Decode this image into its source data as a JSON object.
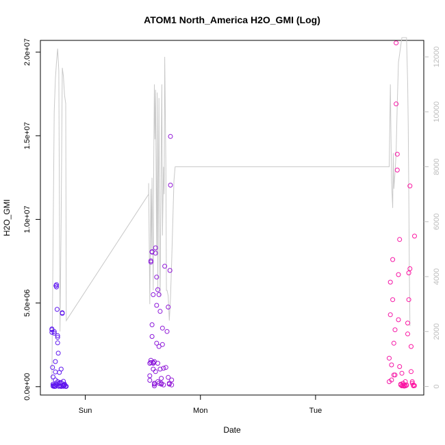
{
  "chart_data": {
    "type": "scatter",
    "title": "ATOM1 North_America H2O_GMI (Log)",
    "xlabel": "Date",
    "ylabel": "H2O_GMI",
    "x_ticks": [
      {
        "label": "Sun",
        "value": 1.0
      },
      {
        "label": "Mon",
        "value": 2.0
      },
      {
        "label": "Tue",
        "value": 3.0
      }
    ],
    "xlim": [
      0.61,
      3.94
    ],
    "y_left": {
      "lim": [
        -500000,
        20700000
      ],
      "ticks": [
        {
          "value": 0,
          "label": "0.0e+00"
        },
        {
          "value": 5000000,
          "label": "5.0e+06"
        },
        {
          "value": 10000000,
          "label": "1.0e+07"
        },
        {
          "value": 15000000,
          "label": "1.5e+07"
        },
        {
          "value": 20000000,
          "label": "2.0e+07"
        }
      ]
    },
    "y_right": {
      "lim": [
        -310,
        12600
      ],
      "ticks": [
        {
          "value": 0,
          "label": "0"
        },
        {
          "value": 2000,
          "label": "2000"
        },
        {
          "value": 4000,
          "label": "4000"
        },
        {
          "value": 6000,
          "label": "6000"
        },
        {
          "value": 8000,
          "label": "8000"
        },
        {
          "value": 10000,
          "label": "10000"
        },
        {
          "value": 12000,
          "label": "12000"
        }
      ]
    },
    "grid": false,
    "legend": "none",
    "colors": {
      "altitude_line": "#c8c8c8",
      "points_start": "#5b16f0",
      "points_end": "#ff14a0"
    },
    "altitude_series": {
      "axis": "right",
      "points": [
        [
          0.71,
          200
        ],
        [
          0.72,
          5200
        ],
        [
          0.73,
          10000
        ],
        [
          0.74,
          11200
        ],
        [
          0.75,
          11800
        ],
        [
          0.76,
          12300
        ],
        [
          0.77,
          11500
        ],
        [
          0.78,
          2000
        ],
        [
          0.79,
          6000
        ],
        [
          0.8,
          11600
        ],
        [
          0.81,
          11300
        ],
        [
          0.82,
          10600
        ],
        [
          0.83,
          10300
        ],
        [
          0.835,
          2400
        ],
        [
          1.55,
          7000
        ],
        [
          1.55,
          7400
        ],
        [
          1.56,
          3000
        ],
        [
          1.57,
          7200
        ],
        [
          1.575,
          5000
        ],
        [
          1.58,
          7600
        ],
        [
          1.59,
          3500
        ],
        [
          1.595,
          8200
        ],
        [
          1.6,
          11000
        ],
        [
          1.605,
          9000
        ],
        [
          1.61,
          10800
        ],
        [
          1.62,
          4800
        ],
        [
          1.625,
          10700
        ],
        [
          1.63,
          3500
        ],
        [
          1.635,
          7500
        ],
        [
          1.64,
          10500
        ],
        [
          1.645,
          5000
        ],
        [
          1.65,
          3300
        ],
        [
          1.66,
          9000
        ],
        [
          1.665,
          11000
        ],
        [
          1.67,
          5500
        ],
        [
          1.68,
          8000
        ],
        [
          1.685,
          7000
        ],
        [
          1.69,
          12000
        ],
        [
          1.7,
          8000
        ],
        [
          1.705,
          3500
        ],
        [
          1.71,
          3500
        ],
        [
          1.72,
          3300
        ],
        [
          1.73,
          2400
        ],
        [
          1.74,
          3200
        ],
        [
          1.75,
          4500
        ],
        [
          1.76,
          6000
        ],
        [
          1.77,
          7500
        ],
        [
          1.78,
          8000
        ],
        [
          3.64,
          8000
        ],
        [
          3.65,
          11000
        ],
        [
          3.66,
          7500
        ],
        [
          3.67,
          6500
        ],
        [
          3.675,
          8500
        ],
        [
          3.68,
          7200
        ],
        [
          3.69,
          7800
        ],
        [
          3.7,
          8500
        ],
        [
          3.71,
          10300
        ],
        [
          3.72,
          11800
        ],
        [
          3.73,
          12100
        ],
        [
          3.75,
          12700
        ],
        [
          3.76,
          12700
        ],
        [
          3.77,
          12700
        ],
        [
          3.78,
          12700
        ],
        [
          3.79,
          12700
        ],
        [
          3.8,
          11000
        ],
        [
          3.805,
          9500
        ],
        [
          3.81,
          7000
        ],
        [
          3.815,
          4000
        ],
        [
          3.82,
          2200
        ]
      ]
    },
    "series": [
      {
        "axis": "left",
        "x": [
          0.71,
          0.71,
          0.71,
          0.715,
          0.72,
          0.72,
          0.72,
          0.73,
          0.73,
          0.73,
          0.735,
          0.74,
          0.74,
          0.74,
          0.745,
          0.75,
          0.75,
          0.755,
          0.76,
          0.76,
          0.76,
          0.765,
          0.77,
          0.77,
          0.775,
          0.78,
          0.78,
          0.79,
          0.79,
          0.79,
          0.8,
          0.8,
          0.81,
          0.81,
          0.815,
          0.82,
          0.82,
          0.83,
          0.83,
          0.835,
          0.74,
          0.76,
          0.78,
          0.72,
          0.73,
          0.75,
          0.77,
          0.79,
          0.81,
          0.82
        ],
        "y": [
          3450000,
          3250000,
          3400000,
          1150000,
          580000,
          150000,
          30000,
          3200000,
          3300000,
          10000,
          20000,
          15000,
          880000,
          1500000,
          6030000,
          6100000,
          5960000,
          4620000,
          3050000,
          2950000,
          2620000,
          2000000,
          20000,
          40000,
          850000,
          250000,
          60000,
          1050000,
          40000,
          10000,
          4420000,
          4380000,
          20000,
          50000,
          60000,
          100000,
          80000,
          30000,
          10000,
          15000,
          400000,
          300000,
          200000,
          70000,
          90000,
          120000,
          180000,
          250000,
          320000,
          150000
        ]
      },
      {
        "axis": "left",
        "x": [
          1.56,
          1.56,
          1.56,
          1.57,
          1.57,
          1.57,
          1.57,
          1.58,
          1.58,
          1.58,
          1.58,
          1.59,
          1.59,
          1.59,
          1.59,
          1.6,
          1.6,
          1.6,
          1.6,
          1.61,
          1.61,
          1.61,
          1.62,
          1.62,
          1.62,
          1.63,
          1.63,
          1.63,
          1.64,
          1.64,
          1.64,
          1.65,
          1.65,
          1.66,
          1.66,
          1.66,
          1.67,
          1.67,
          1.68,
          1.68,
          1.69,
          1.7,
          1.71,
          1.72,
          1.72,
          1.73,
          1.73,
          1.735,
          1.74,
          1.74,
          1.75,
          1.75
        ],
        "y": [
          380000,
          650000,
          1400000,
          1450000,
          1580000,
          7450000,
          7520000,
          8040000,
          8070000,
          3700000,
          3000000,
          5500000,
          1050000,
          1450000,
          1400000,
          1500000,
          200000,
          150000,
          50000,
          900000,
          8300000,
          7980000,
          6550000,
          4860000,
          2600000,
          5800000,
          1400000,
          300000,
          200000,
          5500000,
          2400000,
          4500000,
          1050000,
          200000,
          500000,
          150000,
          2520000,
          3500000,
          100000,
          1100000,
          7200000,
          1150000,
          3300000,
          550000,
          4760000,
          200000,
          150000,
          6950000,
          12050000,
          14960000,
          400000,
          100000
        ]
      },
      {
        "axis": "left",
        "x": [
          3.64,
          3.64,
          3.65,
          3.65,
          3.66,
          3.66,
          3.67,
          3.67,
          3.68,
          3.68,
          3.69,
          3.69,
          3.7,
          3.7,
          3.71,
          3.71,
          3.72,
          3.72,
          3.73,
          3.73,
          3.74,
          3.74,
          3.75,
          3.75,
          3.76,
          3.76,
          3.77,
          3.77,
          3.78,
          3.78,
          3.79,
          3.79,
          3.8,
          3.8,
          3.81,
          3.81,
          3.82,
          3.82,
          3.83,
          3.83,
          3.84,
          3.84,
          3.85,
          3.85,
          3.86,
          3.86
        ],
        "y": [
          1700000,
          300000,
          4300000,
          6250000,
          1300000,
          400000,
          7600000,
          5200000,
          2600000,
          700000,
          3400000,
          700000,
          20550000,
          16900000,
          12950000,
          13900000,
          4000000,
          6700000,
          8800000,
          1200000,
          100000,
          150000,
          800000,
          50000,
          200000,
          50000,
          30000,
          100000,
          300000,
          50000,
          80000,
          100000,
          3150000,
          3800000,
          5200000,
          6800000,
          7050000,
          12000000,
          2400000,
          900000,
          300000,
          200000,
          100000,
          50000,
          60000,
          9000000
        ]
      }
    ]
  }
}
